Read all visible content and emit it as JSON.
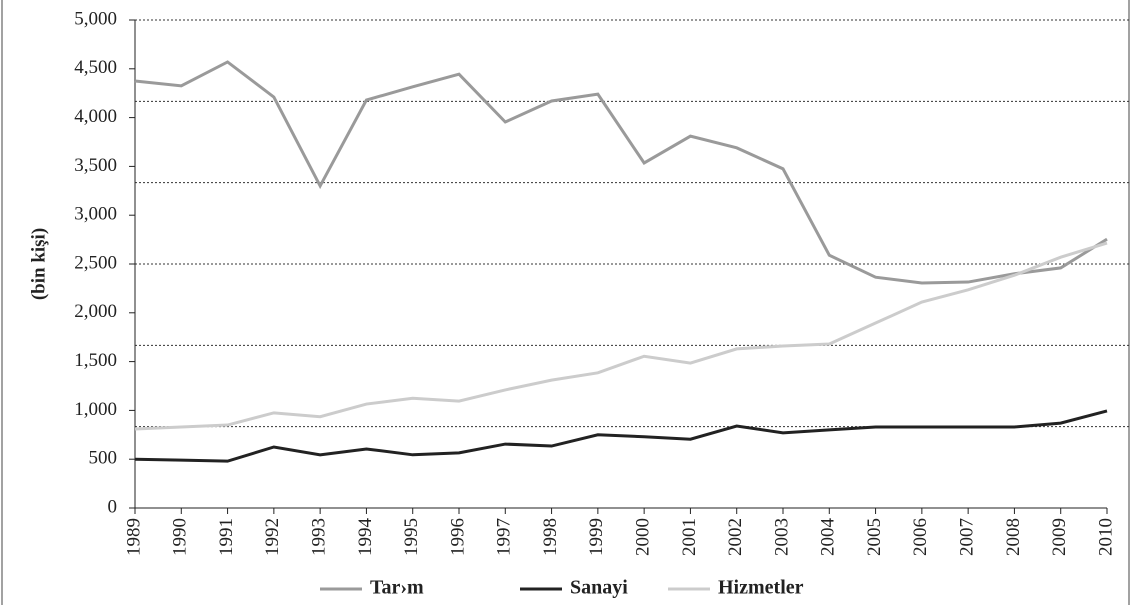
{
  "chart_data": {
    "type": "line",
    "ylabel": "(bin kişi)",
    "categories": [
      "1989",
      "1990",
      "1991",
      "1992",
      "1993",
      "1994",
      "1995",
      "1996",
      "1997",
      "1998",
      "1999",
      "2000",
      "2001",
      "2002",
      "2003",
      "2004",
      "2005",
      "2006",
      "2007",
      "2008",
      "2009",
      "2010"
    ],
    "series": [
      {
        "name": "Tar›m",
        "color": "#9a9a9a",
        "values": [
          4375,
          4325,
          4570,
          4210,
          3300,
          4180,
          4315,
          4445,
          3955,
          4170,
          4240,
          3535,
          3810,
          3690,
          3475,
          2590,
          2365,
          2305,
          2315,
          2400,
          2460,
          2755
        ]
      },
      {
        "name": "Sanayi",
        "color": "#222222",
        "values": [
          500,
          490,
          480,
          625,
          545,
          605,
          545,
          565,
          655,
          635,
          750,
          730,
          705,
          840,
          770,
          800,
          830,
          830,
          830,
          830,
          870,
          995
        ]
      },
      {
        "name": "Hizmetler",
        "color": "#cccccc",
        "values": [
          810,
          830,
          850,
          975,
          935,
          1065,
          1125,
          1095,
          1210,
          1310,
          1385,
          1555,
          1485,
          1630,
          1660,
          1680,
          1895,
          2110,
          2235,
          2385,
          2570,
          2715
        ]
      }
    ],
    "ylim": [
      0,
      5000
    ],
    "yticks": [
      0,
      500,
      {
        "value": 1000,
        "label": "1,000"
      },
      {
        "value": 1500,
        "label": "1,500"
      },
      {
        "value": 2000,
        "label": "2,000"
      },
      {
        "value": 2500,
        "label": "2,500"
      },
      {
        "value": 3000,
        "label": "3,000"
      },
      {
        "value": 3500,
        "label": "3,500"
      },
      {
        "value": 4000,
        "label": "4,000"
      },
      {
        "value": 4500,
        "label": "4,500"
      },
      {
        "value": 5000,
        "label": "5,000"
      }
    ],
    "grid": true,
    "grid_divisions": 6,
    "legend": "bottom"
  }
}
